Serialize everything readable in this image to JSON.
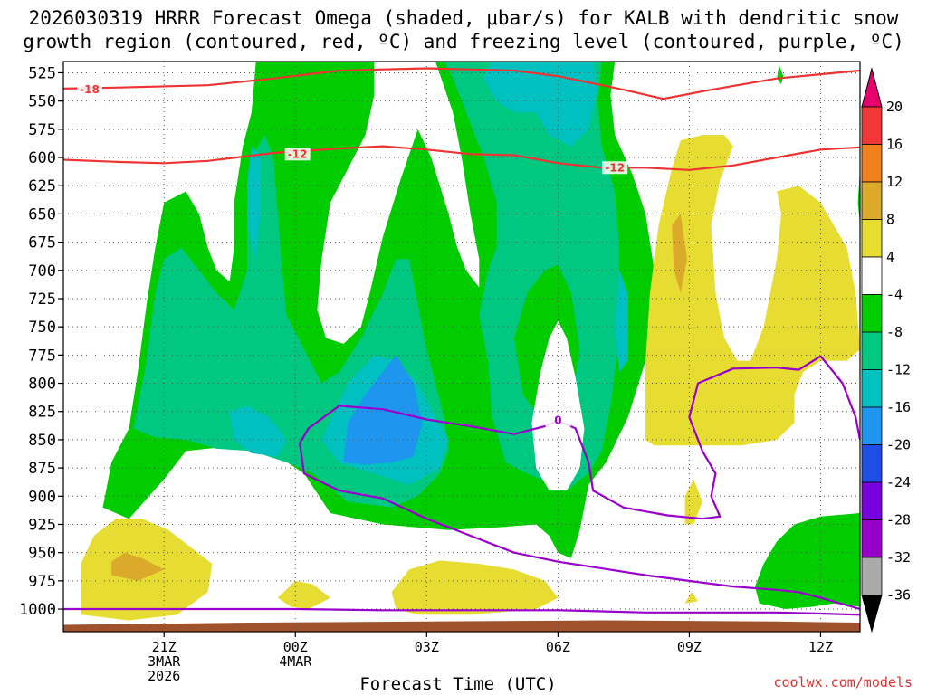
{
  "chart_data": {
    "type": "contour_heatmap",
    "title_line1": "2026030319 HRRR Forecast Omega (shaded, μbar/s) for KALB with dendritic snow",
    "title_line2": "growth region (contoured, red, ºC) and freezing level (contoured, purple, ºC)",
    "xlabel": "Forecast Time (UTC)",
    "credit": "coolwx.com/models",
    "x_ticks": [
      {
        "label": "21Z",
        "hour": 2,
        "sub": [
          "3MAR",
          "2026"
        ]
      },
      {
        "label": "00Z",
        "hour": 5,
        "sub": [
          "4MAR"
        ]
      },
      {
        "label": "03Z",
        "hour": 8,
        "sub": []
      },
      {
        "label": "06Z",
        "hour": 11,
        "sub": []
      },
      {
        "label": "09Z",
        "hour": 14,
        "sub": []
      },
      {
        "label": "12Z",
        "hour": 17,
        "sub": []
      }
    ],
    "x_range": [
      -0.3,
      17.9
    ],
    "y_ticks": [
      525,
      550,
      575,
      600,
      625,
      650,
      675,
      700,
      725,
      750,
      775,
      800,
      825,
      850,
      875,
      900,
      925,
      950,
      975,
      1000
    ],
    "y_range_hpa": [
      515,
      1020
    ],
    "colorbar": {
      "labels": [
        "20",
        "16",
        "12",
        "8",
        "4",
        "-4",
        "-8",
        "-12",
        "-16",
        "-20",
        "-24",
        "-28",
        "-32",
        "-36"
      ],
      "colors": [
        "#f03838",
        "#f0801e",
        "#dcaa2a",
        "#e6dc32",
        "#ffffff",
        "#00cc00",
        "#00c880",
        "#00c0c0",
        "#1e96f0",
        "#1e4ee6",
        "#7800dc",
        "#9600c8",
        "#aaaaaa"
      ],
      "top_arrow_color": "#e6006e",
      "bottom_arrow_color": "#000000"
    },
    "contour_labels": [
      {
        "text": "-18",
        "hour": 0.3,
        "p": 540,
        "color": "#ee3333"
      },
      {
        "text": "-12",
        "hour": 5.05,
        "p": 597,
        "color": "#ee3333"
      },
      {
        "text": "-12",
        "hour": 12.3,
        "p": 609,
        "color": "#ee3333"
      },
      {
        "text": "0",
        "hour": 11.0,
        "p": 833,
        "color": "#9900cc"
      }
    ],
    "contours": [
      {
        "name": "dgz-minus18",
        "color": "#ee3333",
        "points": [
          [
            -0.3,
            539
          ],
          [
            1,
            538
          ],
          [
            3,
            536
          ],
          [
            4.5,
            530
          ],
          [
            6,
            523
          ],
          [
            8,
            521
          ],
          [
            10,
            523
          ],
          [
            11,
            528
          ],
          [
            12.5,
            540
          ],
          [
            13.4,
            548
          ],
          [
            14.5,
            540
          ],
          [
            16,
            530
          ],
          [
            17.9,
            523
          ]
        ]
      },
      {
        "name": "dgz-minus12",
        "color": "#ee3333",
        "points": [
          [
            -0.3,
            602
          ],
          [
            1,
            604
          ],
          [
            2,
            605
          ],
          [
            3,
            603
          ],
          [
            4.5,
            596
          ],
          [
            6,
            592
          ],
          [
            7,
            590
          ],
          [
            8,
            593
          ],
          [
            9,
            597
          ],
          [
            10,
            598
          ],
          [
            11,
            605
          ],
          [
            12,
            609
          ],
          [
            13,
            609
          ],
          [
            14,
            611
          ],
          [
            15,
            607
          ],
          [
            16,
            600
          ],
          [
            17,
            593
          ],
          [
            17.9,
            591
          ]
        ]
      },
      {
        "name": "freezing-level",
        "color": "#9900cc",
        "points": [
          [
            -0.3,
            1000
          ],
          [
            2,
            1000
          ],
          [
            5,
            1000
          ],
          [
            7,
            1001
          ],
          [
            9,
            1001
          ],
          [
            11,
            1001
          ],
          [
            12,
            1002
          ],
          [
            13,
            1003
          ],
          [
            14,
            1003
          ],
          [
            15,
            1003
          ],
          [
            16,
            1003
          ],
          [
            17,
            1004
          ],
          [
            17.9,
            1005
          ]
        ]
      },
      {
        "name": "zero-c-upper",
        "color": "#9900cc",
        "points": [
          [
            5.1,
            853
          ],
          [
            5.3,
            840
          ],
          [
            6,
            820
          ],
          [
            7,
            823
          ],
          [
            8,
            832
          ],
          [
            9,
            838
          ],
          [
            10,
            845
          ],
          [
            10.7,
            838
          ],
          [
            11,
            833
          ],
          [
            11.4,
            840
          ],
          [
            11.7,
            870
          ],
          [
            11.8,
            895
          ],
          [
            12.5,
            910
          ],
          [
            13.5,
            917
          ],
          [
            14.3,
            920
          ],
          [
            14.7,
            918
          ],
          [
            14.5,
            900
          ],
          [
            14.6,
            880
          ],
          [
            14.3,
            860
          ],
          [
            14,
            830
          ],
          [
            14.2,
            800
          ],
          [
            15,
            787
          ],
          [
            16,
            786
          ],
          [
            16.5,
            788
          ],
          [
            17,
            776
          ],
          [
            17.5,
            800
          ],
          [
            17.8,
            830
          ],
          [
            17.9,
            850
          ]
        ]
      },
      {
        "name": "zero-c-lower",
        "color": "#9900cc",
        "points": [
          [
            5.1,
            853
          ],
          [
            5.2,
            880
          ],
          [
            6,
            895
          ],
          [
            7,
            902
          ],
          [
            8,
            920
          ],
          [
            9,
            935
          ],
          [
            10,
            950
          ],
          [
            11,
            958
          ],
          [
            12,
            964
          ],
          [
            13,
            970
          ],
          [
            14,
            975
          ],
          [
            15,
            980
          ],
          [
            16,
            983
          ],
          [
            16.5,
            985
          ],
          [
            17,
            990
          ],
          [
            17.9,
            1000
          ]
        ]
      }
    ],
    "omega_regions": [
      {
        "band": "-8 to -4",
        "color": "#00cc00"
      },
      {
        "band": "-12 to -8",
        "color": "#00c880"
      },
      {
        "band": "-16 to -12",
        "color": "#00c0c0"
      },
      {
        "band": "-20 to -16",
        "color": "#1e96f0"
      },
      {
        "band": "4 to 8",
        "color": "#e6dc32"
      },
      {
        "band": "8 to 12",
        "color": "#dcaa2a"
      }
    ],
    "terrain_color": "#a0522d"
  }
}
